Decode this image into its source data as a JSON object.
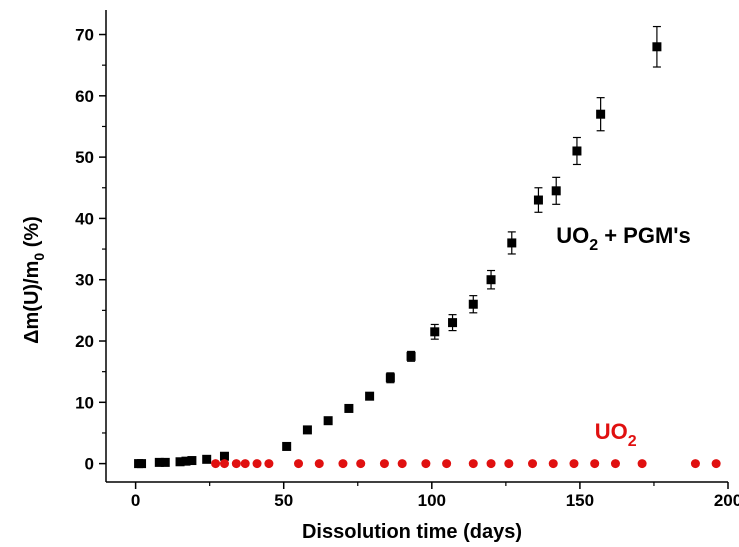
{
  "chart_data": {
    "type": "scatter",
    "xlabel": "Dissolution time (days)",
    "ylabel": {
      "prefix": "Δm(U)/m",
      "subscript": "0",
      "suffix": " (%)"
    },
    "xlim": [
      -10,
      200
    ],
    "ylim": [
      -3,
      74
    ],
    "xticks": [
      0,
      50,
      100,
      150,
      200
    ],
    "yticks": [
      0,
      10,
      20,
      30,
      40,
      50,
      60,
      70
    ],
    "grid": false,
    "legend": "none",
    "annotations": [
      {
        "id": "label-uo2-pgm",
        "parts": [
          "UO",
          "2",
          " + PGM's"
        ],
        "color": "#000000",
        "x": 142,
        "y": 36
      },
      {
        "id": "label-uo2",
        "parts": [
          "UO",
          "2"
        ],
        "color": "#e01010",
        "x": 155,
        "y": 4
      }
    ],
    "series": [
      {
        "marker": "square",
        "color": "#000000",
        "x": [
          1,
          2,
          8,
          10,
          15,
          17,
          19,
          24,
          30,
          51,
          58,
          65,
          72,
          79,
          86,
          93,
          101,
          107,
          114,
          120,
          127,
          136,
          142,
          149,
          157,
          176
        ],
        "y": [
          0,
          0,
          0.2,
          0.2,
          0.3,
          0.4,
          0.5,
          0.7,
          1.2,
          2.8,
          5.5,
          7,
          9,
          11,
          14,
          17.5,
          21.5,
          23,
          26,
          30,
          36,
          43,
          44.5,
          51,
          57,
          68
        ],
        "err": [
          0,
          0,
          0,
          0,
          0,
          0,
          0,
          0,
          0,
          0.3,
          0.4,
          0.4,
          0.5,
          0.5,
          0.8,
          0.8,
          1.2,
          1.3,
          1.4,
          1.5,
          1.8,
          2.0,
          2.2,
          2.2,
          2.7,
          3.3
        ]
      },
      {
        "marker": "circle",
        "color": "#e01010",
        "x": [
          27,
          30,
          34,
          37,
          41,
          45,
          55,
          62,
          70,
          76,
          84,
          90,
          98,
          105,
          114,
          120,
          126,
          134,
          141,
          148,
          155,
          162,
          171,
          189,
          196
        ],
        "y": [
          0,
          0,
          0,
          0,
          0,
          0,
          0,
          0,
          0,
          0,
          0,
          0,
          0,
          0,
          0,
          0,
          0,
          0,
          0,
          0,
          0,
          0,
          0,
          0,
          0
        ]
      }
    ]
  }
}
